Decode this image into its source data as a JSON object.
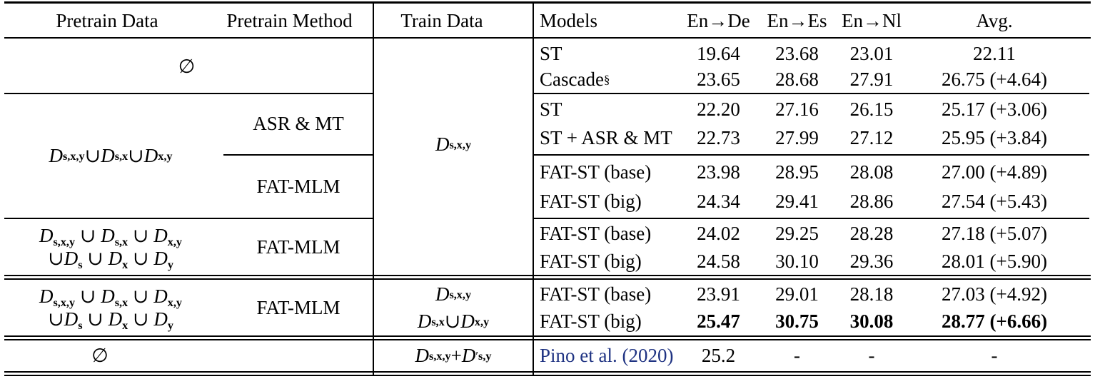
{
  "page": {
    "background": "#ffffff",
    "text_color": "#000000",
    "citation_color": "#1e3282"
  },
  "table": {
    "headers": {
      "pretrain_data": "Pretrain Data",
      "pretrain_method": "Pretrain Method",
      "train_data": "Train Data",
      "models": "Models",
      "en_de": "En→De",
      "en_es": "En→Es",
      "en_nl": "En→Nl",
      "avg": "Avg."
    },
    "pretrain": {
      "block1": "∅",
      "block2": "D_{s,x,y} ∪ D_{s,x} ∪ D_{x,y}",
      "block3_line1": "D_{s,x,y} ∪ D_{s,x} ∪ D_{x,y}",
      "block3_line2": "∪D_{s} ∪ D_{x} ∪ D_{y}",
      "block4_line1": "D_{s,x,y} ∪ D_{s,x} ∪ D_{x,y}",
      "block4_line2": "∪D_{s} ∪ D_{x} ∪ D_{y}",
      "block5": "∅"
    },
    "methods": {
      "asr_mt": "ASR & MT",
      "fat_mlm_block2": "FAT-MLM",
      "fat_mlm_block3": "FAT-MLM",
      "fat_mlm_block4": "FAT-MLM"
    },
    "train": {
      "main": "D_{s,x,y}",
      "row9": "D_{s,x,y}",
      "row10": "D_{s,x} ∪ D_{x,y}",
      "last": "D_{s,x,y} + D^{′}_{s,y}"
    },
    "rows": [
      {
        "model": "ST",
        "en_de": "19.64",
        "en_es": "23.68",
        "en_nl": "23.01",
        "avg": "22.11"
      },
      {
        "model": "Cascade^{§}",
        "en_de": "23.65",
        "en_es": "28.68",
        "en_nl": "27.91",
        "avg": "26.75 (+4.64)"
      },
      {
        "model": "ST",
        "en_de": "22.20",
        "en_es": "27.16",
        "en_nl": "26.15",
        "avg": "25.17 (+3.06)"
      },
      {
        "model": "ST + ASR & MT",
        "en_de": "22.73",
        "en_es": "27.99",
        "en_nl": "27.12",
        "avg": "25.95 (+3.84)"
      },
      {
        "model": "FAT-ST (base)",
        "en_de": "23.98",
        "en_es": "28.95",
        "en_nl": "28.08",
        "avg": "27.00 (+4.89)"
      },
      {
        "model": "FAT-ST (big)",
        "en_de": "24.34",
        "en_es": "29.41",
        "en_nl": "28.86",
        "avg": "27.54 (+5.43)"
      },
      {
        "model": "FAT-ST (base)",
        "en_de": "24.02",
        "en_es": "29.25",
        "en_nl": "28.28",
        "avg": "27.18 (+5.07)"
      },
      {
        "model": "FAT-ST (big)",
        "en_de": "24.58",
        "en_es": "30.10",
        "en_nl": "29.36",
        "avg": "28.01 (+5.90)"
      },
      {
        "model": "FAT-ST (base)",
        "en_de": "23.91",
        "en_es": "29.01",
        "en_nl": "28.18",
        "avg": "27.03 (+4.92)"
      },
      {
        "model": "FAT-ST (big)",
        "en_de": "25.47",
        "en_es": "30.75",
        "en_nl": "30.08",
        "avg": "28.77 (+6.66)"
      },
      {
        "model": "Pino et al. (2020)",
        "en_de": "25.2",
        "en_es": "-",
        "en_nl": "-",
        "avg": "-"
      }
    ]
  }
}
